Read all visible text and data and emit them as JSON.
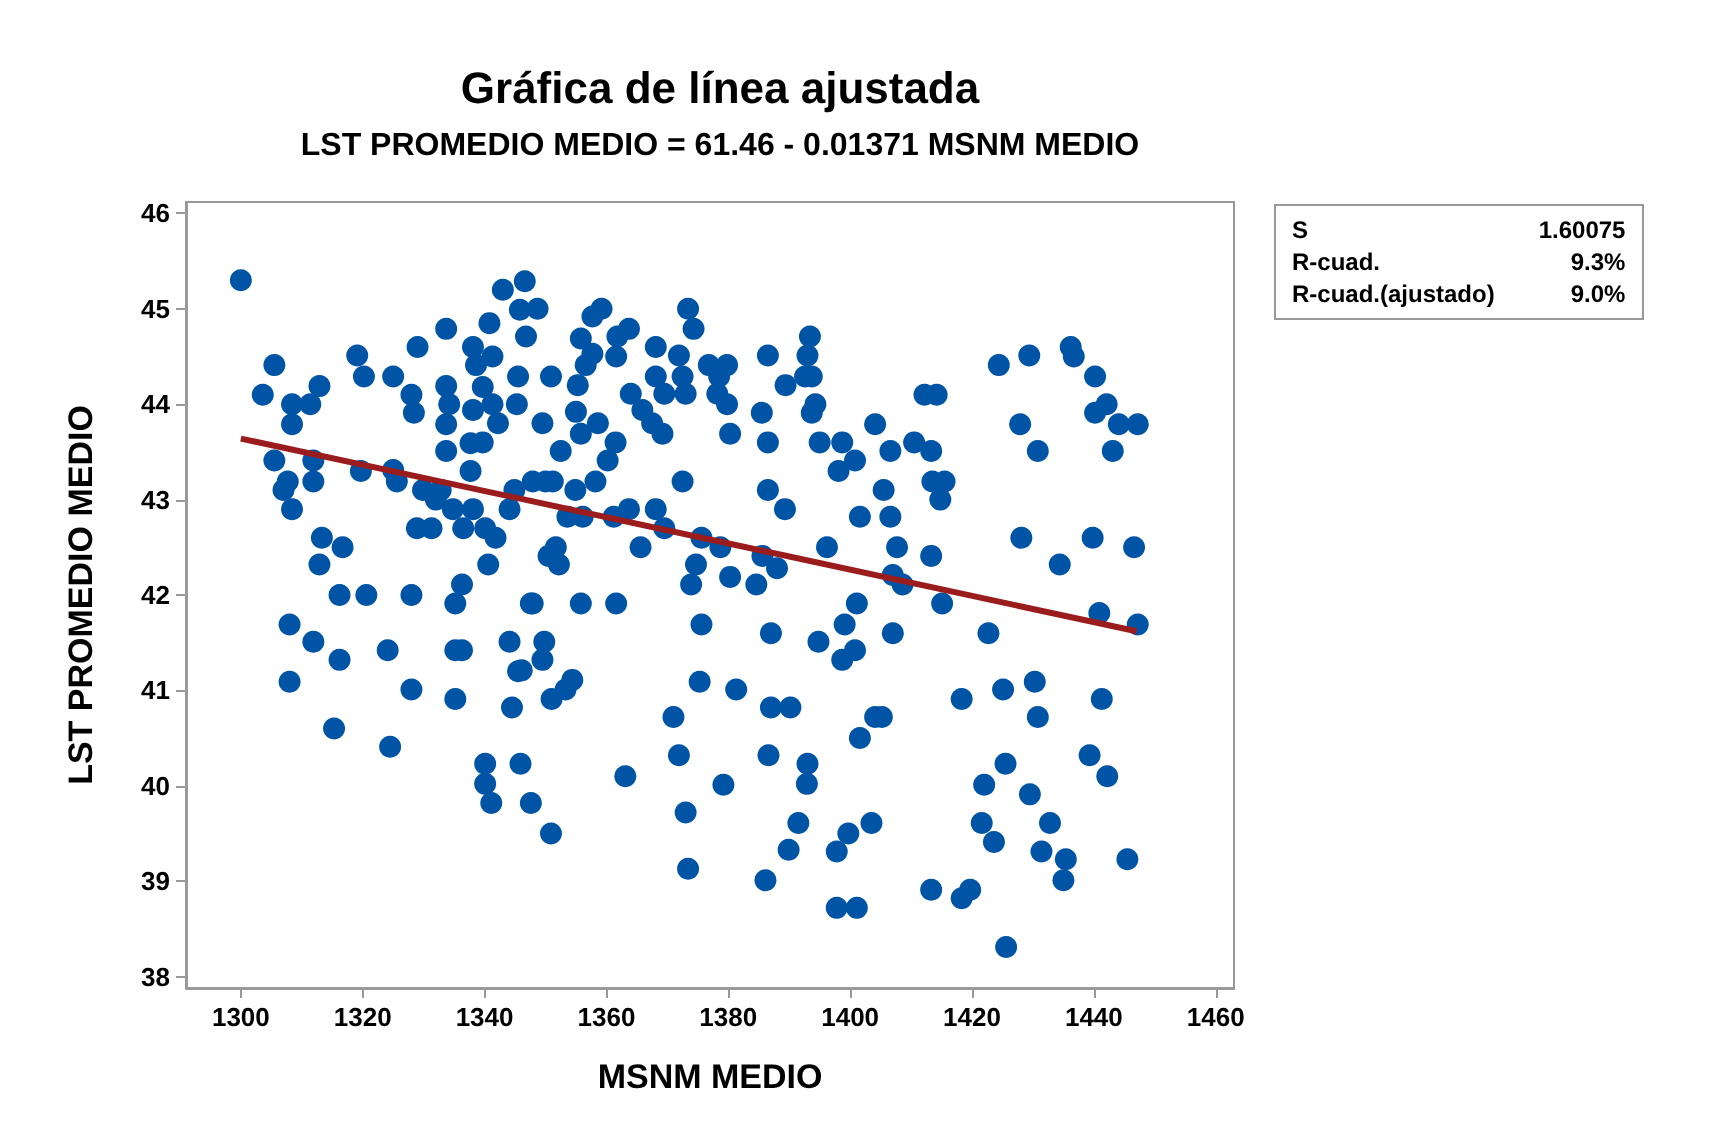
{
  "chart_data": {
    "type": "scatter",
    "title": "Gráfica de línea ajustada",
    "subtitle": "LST PROMEDIO MEDIO = 61.46 - 0.01371 MSNM MEDIO",
    "xlabel": "MSNM MEDIO",
    "ylabel": "LST PROMEDIO MEDIO",
    "annotations": [
      "S",
      "1.60075",
      "R-cuad.",
      "9.3%",
      "R-cuad.(ajustado)",
      "9.0%"
    ],
    "xlim": [
      1291,
      1463
    ],
    "xticks": [
      1300,
      1320,
      1340,
      1360,
      1380,
      1400,
      1420,
      1440,
      1460
    ],
    "ylim": [
      37.88,
      46.12
    ],
    "yticks": [
      38,
      39,
      40,
      41,
      42,
      43,
      44,
      45,
      46
    ],
    "grid": false,
    "marker": "circle",
    "series": [
      {
        "color": "#0054a6",
        "x": [
          1300,
          1305.5,
          1303.6,
          1308.4,
          1311.4,
          1312.9,
          1308.4,
          1305.5,
          1311.9,
          1311.9,
          1307.7,
          1307,
          1308.4,
          1313.3,
          1316.7,
          1312.9,
          1316.2,
          1320.6,
          1308,
          1311.9,
          1316.2,
          1308,
          1315.3,
          1324.5,
          1324.1,
          1328,
          1328,
          1335.2,
          1336.3,
          1335.2,
          1336.3,
          1335.2,
          1340.1,
          1340.1,
          1341.1,
          1345.9,
          1347.6,
          1344.1,
          1345.5,
          1344.5,
          1340.6,
          1347.6,
          1341.8,
          1340.1,
          1336.5,
          1328.9,
          1331.3,
          1334.8,
          1338.1,
          1344.1,
          1344.9,
          1332,
          1329.9,
          1332.8,
          1325,
          1325.6,
          1319.7,
          1337.7,
          1333.7,
          1337.7,
          1339.7,
          1333.7,
          1328.4,
          1328,
          1325,
          1319.1,
          1320.2,
          1329,
          1333.7,
          1333.7,
          1334.2,
          1338.1,
          1338.6,
          1339.7,
          1338.1,
          1341.3,
          1341.3,
          1340.8,
          1343,
          1346.6,
          1345.8,
          1345.3,
          1342.2,
          1345.5,
          1346.8,
          1348.7,
          1349.5,
          1350.9,
          1352.5,
          1350,
          1347.9,
          1351.2,
          1354.9,
          1353.6,
          1356.1,
          1350.5,
          1352.2,
          1351.7,
          1347.9,
          1355.8,
          1361.6,
          1349.8,
          1349.5,
          1346.1,
          1353.3,
          1351,
          1354.4,
          1350.9,
          1363.1,
          1358.6,
          1355.8,
          1355,
          1355.3,
          1357.7,
          1359.2,
          1355.8,
          1356.6,
          1357.7,
          1361.8,
          1363.7,
          1361.6,
          1361.5,
          1360.2,
          1358.2,
          1361.2,
          1363.7,
          1365.6,
          1368.1,
          1369.5,
          1372.5,
          1364,
          1365.9,
          1367.5,
          1369.2,
          1368.1,
          1368.1,
          1369.5,
          1371.9,
          1373,
          1372.5,
          1373.4,
          1374.3,
          1376.8,
          1378.5,
          1379.8,
          1378.2,
          1379.8,
          1380.3,
          1385.5,
          1386.5,
          1389.4,
          1386.5,
          1393.4,
          1393,
          1392.6,
          1393.7,
          1394.3,
          1393.7,
          1395,
          1398.7,
          1400.8,
          1398.1,
          1401.6,
          1404.1,
          1386.5,
          1389.3,
          1375.6,
          1374.7,
          1373.9,
          1378.7,
          1380.3,
          1385.6,
          1388,
          1384.6,
          1396.2,
          1375.6,
          1387,
          1394.8,
          1399.1,
          1401.1,
          1400.8,
          1398.7,
          1375.3,
          1381.3,
          1371,
          1387,
          1390.2,
          1371.9,
          1386.6,
          1393,
          1392.9,
          1401.6,
          1404.1,
          1379.2,
          1373,
          1373.4,
          1386.1,
          1391.5,
          1389.9,
          1397.8,
          1399.7,
          1403.5,
          1397.8,
          1401.1,
          1406.6,
          1410.5,
          1413.3,
          1412.2,
          1414.2,
          1405.5,
          1406.6,
          1407.7,
          1407,
          1408.6,
          1413.5,
          1415.5,
          1414.8,
          1413.3,
          1415.1,
          1407,
          1405.2,
          1418.3,
          1422.7,
          1425.1,
          1430.3,
          1430.8,
          1425.5,
          1422,
          1429.5,
          1421.6,
          1423.6,
          1432.8,
          1431.4,
          1435.4,
          1435,
          1445.5,
          1439.3,
          1442.2,
          1441.3,
          1440.9,
          1447.2,
          1413.3,
          1418.3,
          1419.7,
          1425.6,
          1428.1,
          1434.4,
          1439.8,
          1446.6,
          1424.4,
          1429.4,
          1427.9,
          1430.8,
          1436.2,
          1436.7,
          1440.2,
          1442.1,
          1440.2,
          1444.1,
          1447.2,
          1443.1
        ],
        "values": [
          45.3,
          44.41,
          44.1,
          44.0,
          44.0,
          44.19,
          43.79,
          43.41,
          43.41,
          43.19,
          43.19,
          43.1,
          42.9,
          42.6,
          42.5,
          42.32,
          42.0,
          42.0,
          41.69,
          41.51,
          41.32,
          41.09,
          40.6,
          40.41,
          41.42,
          42.0,
          41.01,
          41.91,
          42.11,
          41.42,
          41.42,
          40.91,
          40.23,
          40.02,
          39.82,
          40.23,
          39.82,
          41.51,
          41.2,
          40.82,
          42.32,
          41.91,
          42.6,
          42.7,
          42.7,
          42.7,
          42.7,
          42.9,
          42.9,
          42.9,
          43.1,
          43.0,
          43.1,
          43.1,
          43.31,
          43.19,
          43.3,
          43.3,
          43.51,
          43.59,
          43.6,
          43.79,
          43.91,
          44.1,
          44.29,
          44.51,
          44.29,
          44.6,
          44.79,
          44.19,
          44.0,
          44.6,
          44.41,
          44.18,
          43.94,
          44.0,
          44.5,
          44.85,
          45.2,
          45.29,
          44.99,
          44.0,
          43.8,
          44.29,
          44.71,
          45.0,
          43.8,
          44.29,
          43.51,
          43.19,
          43.19,
          43.19,
          43.1,
          42.82,
          42.82,
          42.41,
          42.32,
          42.5,
          41.91,
          41.91,
          41.91,
          41.51,
          41.32,
          41.21,
          41.01,
          40.91,
          41.11,
          39.5,
          40.1,
          43.8,
          43.69,
          43.92,
          44.2,
          44.92,
          45.0,
          44.69,
          44.41,
          44.53,
          44.71,
          44.79,
          44.5,
          43.6,
          43.41,
          43.19,
          42.82,
          42.9,
          42.5,
          42.9,
          42.7,
          43.19,
          44.11,
          43.94,
          43.8,
          43.69,
          44.29,
          44.6,
          44.11,
          44.51,
          44.11,
          44.29,
          45.0,
          44.79,
          44.41,
          44.29,
          44.41,
          44.11,
          44.0,
          43.69,
          43.91,
          44.51,
          44.2,
          43.6,
          44.71,
          44.51,
          44.29,
          44.29,
          44.0,
          43.91,
          43.6,
          43.6,
          43.41,
          43.3,
          42.82,
          43.79,
          43.1,
          42.9,
          42.6,
          42.32,
          42.11,
          42.5,
          42.19,
          42.41,
          42.28,
          42.11,
          42.5,
          41.69,
          41.6,
          41.51,
          41.69,
          41.91,
          41.42,
          41.32,
          41.09,
          41.01,
          40.72,
          40.82,
          40.82,
          40.32,
          40.32,
          40.23,
          40.02,
          40.5,
          40.72,
          40.01,
          39.72,
          39.13,
          39.01,
          39.61,
          39.33,
          39.31,
          39.5,
          39.61,
          38.72,
          38.72,
          43.51,
          43.6,
          43.51,
          44.1,
          44.1,
          43.1,
          42.82,
          42.5,
          42.21,
          42.11,
          43.19,
          43.19,
          43.0,
          42.41,
          41.91,
          41.6,
          40.72,
          40.91,
          41.6,
          41.01,
          41.09,
          40.72,
          40.23,
          40.01,
          39.91,
          39.61,
          39.41,
          39.61,
          39.31,
          39.23,
          39.01,
          39.23,
          40.32,
          40.1,
          40.91,
          41.81,
          41.69,
          38.91,
          38.82,
          38.91,
          38.31,
          42.6,
          42.32,
          42.6,
          42.5,
          44.41,
          44.51,
          43.79,
          43.51,
          44.6,
          44.5,
          44.29,
          44.0,
          43.91,
          43.79,
          43.79,
          43.51
        ]
      },
      {
        "type": "line",
        "color": "#9b1c1c",
        "marker": "none",
        "x": [
          1300,
          1447
        ],
        "values": [
          43.64,
          41.62
        ]
      }
    ]
  }
}
